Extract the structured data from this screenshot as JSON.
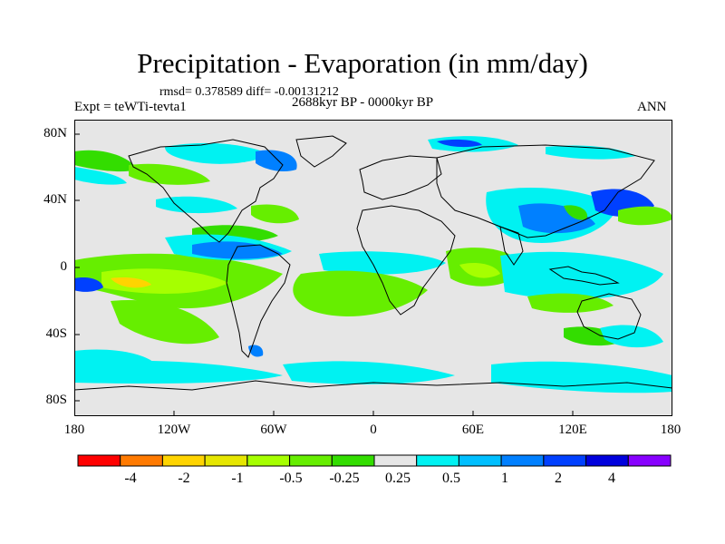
{
  "title": "Precipitation - Evaporation (in mm/day)",
  "stats": "rmsd= 0.378589  diff= -0.00131212",
  "period": "2688kyr BP - 0000kyr BP",
  "experiment": "Expt = teWTi-tevta1",
  "season": "ANN",
  "lat_ticks": [
    "80N",
    "40N",
    "0",
    "40S",
    "80S"
  ],
  "lon_ticks": [
    "180",
    "120W",
    "60W",
    "0",
    "60E",
    "120E",
    "180"
  ],
  "colorbar": {
    "colors": [
      "#ff0000",
      "#ff7a00",
      "#ffd400",
      "#e6e600",
      "#a6ff00",
      "#66ee00",
      "#33dd00",
      "#e6e6e6",
      "#00f2f2",
      "#00bfff",
      "#0080ff",
      "#0040ff",
      "#0000dd",
      "#8800ff"
    ],
    "labels": [
      "-4",
      "-2",
      "-1",
      "-0.5",
      "-0.25",
      "0.25",
      "0.5",
      "1",
      "2",
      "4"
    ]
  },
  "colors": {
    "land_background": "#e6e6e6",
    "coast": "#000000"
  }
}
